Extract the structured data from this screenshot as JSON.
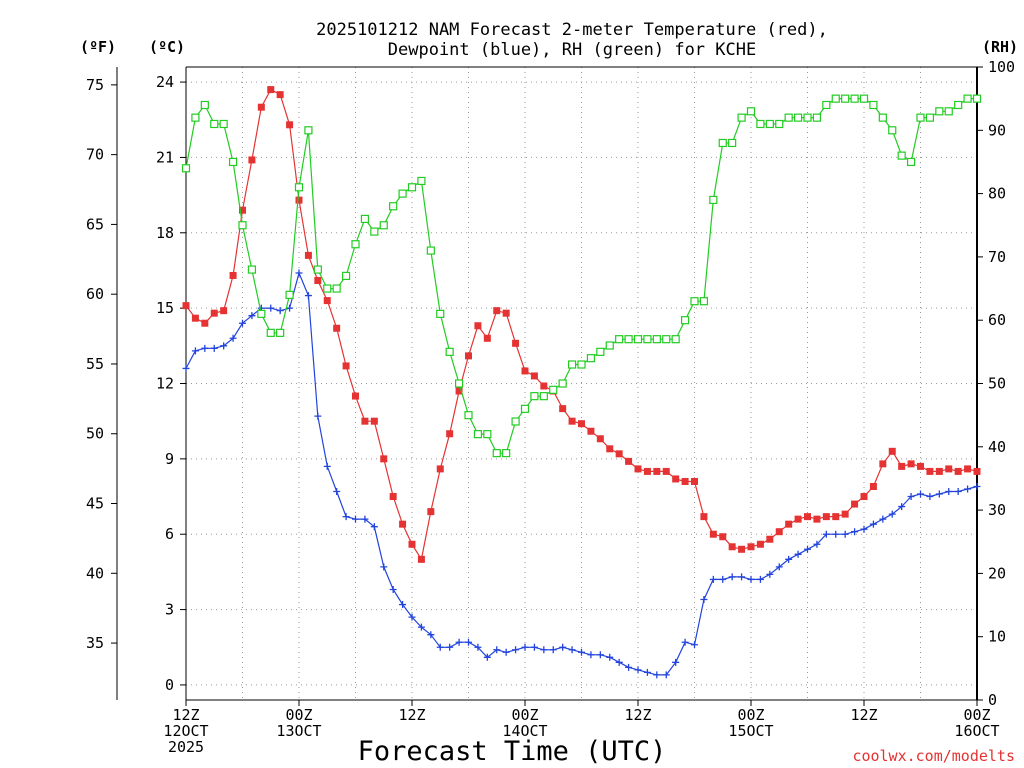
{
  "chart_data": {
    "type": "line",
    "title": "2025101212 NAM Forecast 2-meter Temperature (red),",
    "title_line2": "Dewpoint (blue), RH (green) for KCHE",
    "xlabel": "Forecast Time (UTC)",
    "credit": "coolwx.com/modelts",
    "axes": {
      "fahrenheit_label": "(ºF)",
      "celsius_label": "(ºC)",
      "rh_label": "(RH)",
      "fahrenheit_ticks": [
        "75",
        "70",
        "65",
        "60",
        "55",
        "50",
        "45",
        "40",
        "35"
      ],
      "fahrenheit_values": [
        75,
        70,
        65,
        60,
        55,
        50,
        45,
        40,
        35
      ],
      "celsius_ticks": [
        "24",
        "21",
        "18",
        "15",
        "12",
        "9",
        "6",
        "3",
        "0"
      ],
      "celsius_values": [
        24,
        21,
        18,
        15,
        12,
        9,
        6,
        3,
        0
      ],
      "rh_ticks": [
        "100",
        "90",
        "80",
        "70",
        "60",
        "50",
        "40",
        "30",
        "20",
        "10",
        "0"
      ],
      "rh_values": [
        100,
        90,
        80,
        70,
        60,
        50,
        40,
        30,
        20,
        10,
        0
      ],
      "celsius_range": [
        -0.6,
        24.6
      ],
      "rh_range": [
        0,
        100
      ],
      "x_range_hours": [
        0,
        84
      ],
      "grid": true
    },
    "x_ticks": [
      {
        "hour": 0,
        "line1": "12Z",
        "line2": "12OCT",
        "line3": "2025"
      },
      {
        "hour": 12,
        "line1": "00Z",
        "line2": "13OCT",
        "line3": ""
      },
      {
        "hour": 24,
        "line1": "12Z",
        "line2": "",
        "line3": ""
      },
      {
        "hour": 36,
        "line1": "00Z",
        "line2": "14OCT",
        "line3": ""
      },
      {
        "hour": 48,
        "line1": "12Z",
        "line2": "",
        "line3": ""
      },
      {
        "hour": 60,
        "line1": "00Z",
        "line2": "15OCT",
        "line3": ""
      },
      {
        "hour": 72,
        "line1": "12Z",
        "line2": "",
        "line3": ""
      },
      {
        "hour": 84,
        "line1": "00Z",
        "line2": "16OCT",
        "line3": ""
      }
    ],
    "x_hours": [
      0,
      1,
      2,
      3,
      4,
      5,
      6,
      7,
      8,
      9,
      10,
      11,
      12,
      13,
      14,
      15,
      16,
      17,
      18,
      19,
      20,
      21,
      22,
      23,
      24,
      25,
      26,
      27,
      28,
      29,
      30,
      31,
      32,
      33,
      34,
      35,
      36,
      37,
      38,
      39,
      40,
      41,
      42,
      43,
      44,
      45,
      46,
      47,
      48,
      49,
      50,
      51,
      52,
      53,
      54,
      55,
      56,
      57,
      58,
      59,
      60,
      61,
      62,
      63,
      64,
      65,
      66,
      67,
      68,
      69,
      70,
      71,
      72,
      73,
      74,
      75,
      76,
      77,
      78,
      79,
      80,
      81,
      82,
      83,
      84
    ],
    "series": [
      {
        "name": "Temperature",
        "color": "#e53333",
        "unit": "C",
        "marker": "filled-square",
        "values": [
          15.1,
          14.6,
          14.4,
          14.8,
          14.9,
          16.3,
          18.9,
          20.9,
          23.0,
          23.7,
          23.5,
          22.3,
          19.3,
          17.1,
          16.1,
          15.3,
          14.2,
          12.7,
          11.5,
          10.5,
          10.5,
          9.0,
          7.5,
          6.4,
          5.6,
          5.0,
          6.9,
          8.6,
          10.0,
          11.7,
          13.1,
          14.3,
          13.8,
          14.9,
          14.8,
          13.6,
          12.5,
          12.3,
          11.9,
          11.7,
          11.0,
          10.5,
          10.4,
          10.1,
          9.8,
          9.4,
          9.2,
          8.9,
          8.6,
          8.5,
          8.5,
          8.5,
          8.2,
          8.1,
          8.1,
          6.7,
          6.0,
          5.9,
          5.5,
          5.4,
          5.5,
          5.6,
          5.8,
          6.1,
          6.4,
          6.6,
          6.7,
          6.6,
          6.7,
          6.7,
          6.8,
          7.2,
          7.5,
          7.9,
          8.8,
          9.3,
          8.7,
          8.8,
          8.7,
          8.5,
          8.5,
          8.6,
          8.5,
          8.6,
          8.5
        ]
      },
      {
        "name": "Dewpoint",
        "color": "#2244dd",
        "unit": "C",
        "marker": "plus",
        "values": [
          12.6,
          13.3,
          13.4,
          13.4,
          13.5,
          13.8,
          14.4,
          14.7,
          15.0,
          15.0,
          14.9,
          15.0,
          16.4,
          15.5,
          10.7,
          8.7,
          7.7,
          6.7,
          6.6,
          6.6,
          6.3,
          4.7,
          3.8,
          3.2,
          2.7,
          2.3,
          2.0,
          1.5,
          1.5,
          1.7,
          1.7,
          1.5,
          1.1,
          1.4,
          1.3,
          1.4,
          1.5,
          1.5,
          1.4,
          1.4,
          1.5,
          1.4,
          1.3,
          1.2,
          1.2,
          1.1,
          0.9,
          0.7,
          0.6,
          0.5,
          0.4,
          0.4,
          0.9,
          1.7,
          1.6,
          3.4,
          4.2,
          4.2,
          4.3,
          4.3,
          4.2,
          4.2,
          4.4,
          4.7,
          5.0,
          5.2,
          5.4,
          5.6,
          6.0,
          6.0,
          6.0,
          6.1,
          6.2,
          6.4,
          6.6,
          6.8,
          7.1,
          7.5,
          7.6,
          7.5,
          7.6,
          7.7,
          7.7,
          7.8,
          7.9
        ]
      },
      {
        "name": "RH",
        "color": "#22cc22",
        "unit": "%",
        "marker": "hollow-square",
        "values": [
          84,
          92,
          94,
          91,
          91,
          85,
          75,
          68,
          61,
          58,
          58,
          64,
          81,
          90,
          68,
          65,
          65,
          67,
          72,
          76,
          74,
          75,
          78,
          80,
          81,
          82,
          71,
          61,
          55,
          50,
          45,
          42,
          42,
          39,
          39,
          44,
          46,
          48,
          48,
          49,
          50,
          53,
          53,
          54,
          55,
          56,
          57,
          57,
          57,
          57,
          57,
          57,
          57,
          60,
          63,
          63,
          79,
          88,
          88,
          92,
          93,
          91,
          91,
          91,
          92,
          92,
          92,
          92,
          94,
          95,
          95,
          95,
          95,
          94,
          92,
          90,
          86,
          85,
          92,
          92,
          93,
          93,
          94,
          95,
          95
        ]
      }
    ]
  }
}
